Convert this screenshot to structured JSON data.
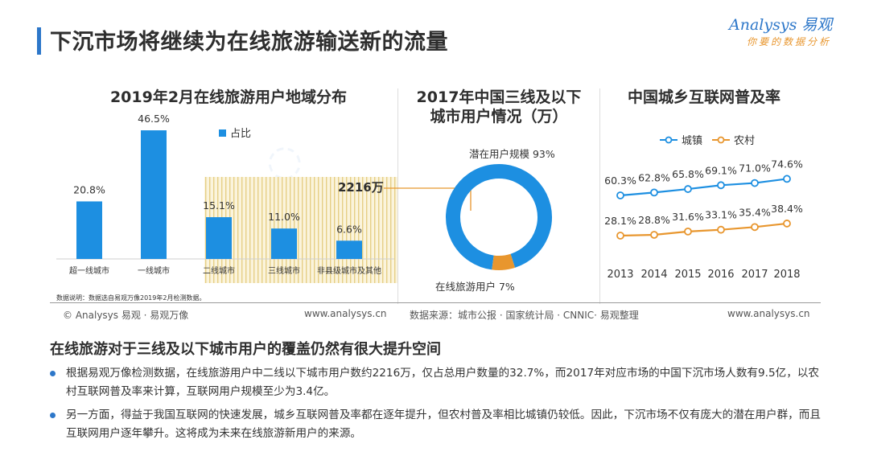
{
  "header": {
    "title": "下沉市场将继续为在线旅游输送新的流量",
    "logo_name": "Analysys 易观",
    "logo_sub": "你要的数据分析",
    "accent": "#2d77c9",
    "accent2": "#e8962e"
  },
  "chart_data": [
    {
      "type": "bar",
      "title": "2019年2月在线旅游用户地域分布",
      "legend": "占比",
      "categories": [
        "超一线城市",
        "一线城市",
        "二线城市",
        "三线城市",
        "非县级城市及其他"
      ],
      "values": [
        20.8,
        46.5,
        15.1,
        11.0,
        6.6
      ],
      "value_labels": [
        "20.8%",
        "46.5%",
        "15.1%",
        "11.0%",
        "6.6%"
      ],
      "ylim": [
        0,
        50
      ],
      "highlight_label": "2216万",
      "note": "数据说明：数据选自易观万像2019年2月检测数据。",
      "color": "#1d8fe1"
    },
    {
      "type": "pie",
      "title_line1": "2017年中国三线及以下",
      "title_line2": "城市用户情况（万）",
      "slices": [
        {
          "name": "潜在用户规模",
          "value": 93,
          "label": "潜在用户规模 93%",
          "color": "#1d8fe1"
        },
        {
          "name": "在线旅游用户",
          "value": 7,
          "label": "在线旅游用户 7%",
          "color": "#e8962e"
        }
      ]
    },
    {
      "type": "line",
      "title": "中国城乡互联网普及率",
      "x": [
        "2013",
        "2014",
        "2015",
        "2016",
        "2017",
        "2018"
      ],
      "series": [
        {
          "name": "城镇",
          "values": [
            60.3,
            62.8,
            65.8,
            69.1,
            71.0,
            74.6
          ],
          "labels": [
            "60.3%",
            "62.8%",
            "65.8%",
            "69.1%",
            "71.0%",
            "74.6%"
          ],
          "color": "#1d8fe1"
        },
        {
          "name": "农村",
          "values": [
            28.1,
            28.8,
            31.6,
            33.1,
            35.4,
            38.4
          ],
          "labels": [
            "28.1%",
            "28.8%",
            "31.6%",
            "33.1%",
            "35.4%",
            "38.4%"
          ],
          "color": "#e8962e"
        }
      ],
      "ylim": [
        0,
        100
      ],
      "grid": false
    }
  ],
  "footer": {
    "left_copyright": "© Analysys 易观 · 易观万像",
    "left_url": "www.analysys.cn",
    "source": "数据来源：城市公报 · 国家统计局 · CNNIC· 易观整理",
    "right_url": "www.analysys.cn"
  },
  "section": {
    "heading": "在线旅游对于三线及以下城市用户的覆盖仍然有很大提升空间",
    "bullets": [
      "根据易观万像检测数据，在线旅游用户中二线以下城市用户数约2216万，仅占总用户数量的32.7%，而2017年对应市场的中国下沉市场人数有9.5亿，以农村互联网普及率来计算，互联网用户规模至少为3.4亿。",
      "另一方面，得益于我国互联网的快速发展，城乡互联网普及率都在逐年提升，但农村普及率相比城镇仍较低。因此，下沉市场不仅有庞大的潜在用户群，而且互联网用户逐年攀升。这将成为未来在线旅游新用户的来源。"
    ]
  }
}
